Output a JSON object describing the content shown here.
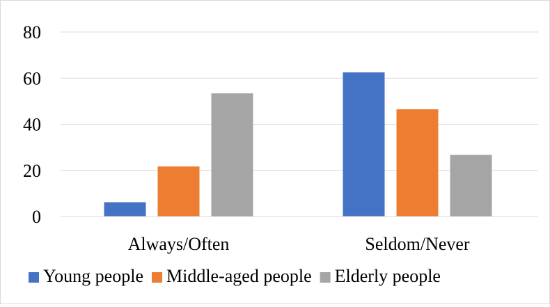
{
  "chart_data": {
    "type": "bar",
    "title": "",
    "xlabel": "",
    "ylabel": "",
    "categories": [
      "Always/Often",
      "Seldom/Never"
    ],
    "series": [
      {
        "name": "Young people",
        "values": [
          6.2,
          62.5
        ],
        "color": "#4472c4"
      },
      {
        "name": "Middle-aged people",
        "values": [
          21.7,
          46.5
        ],
        "color": "#ed7d31"
      },
      {
        "name": "Elderly people",
        "values": [
          53.4,
          26.7
        ],
        "color": "#a5a5a5"
      }
    ],
    "ylim": [
      0,
      80
    ],
    "yticks": [
      "0",
      "20",
      "40",
      "60",
      "80"
    ],
    "grid": true,
    "gridline_color": "#d9d9d9",
    "legend_position": "bottom"
  }
}
